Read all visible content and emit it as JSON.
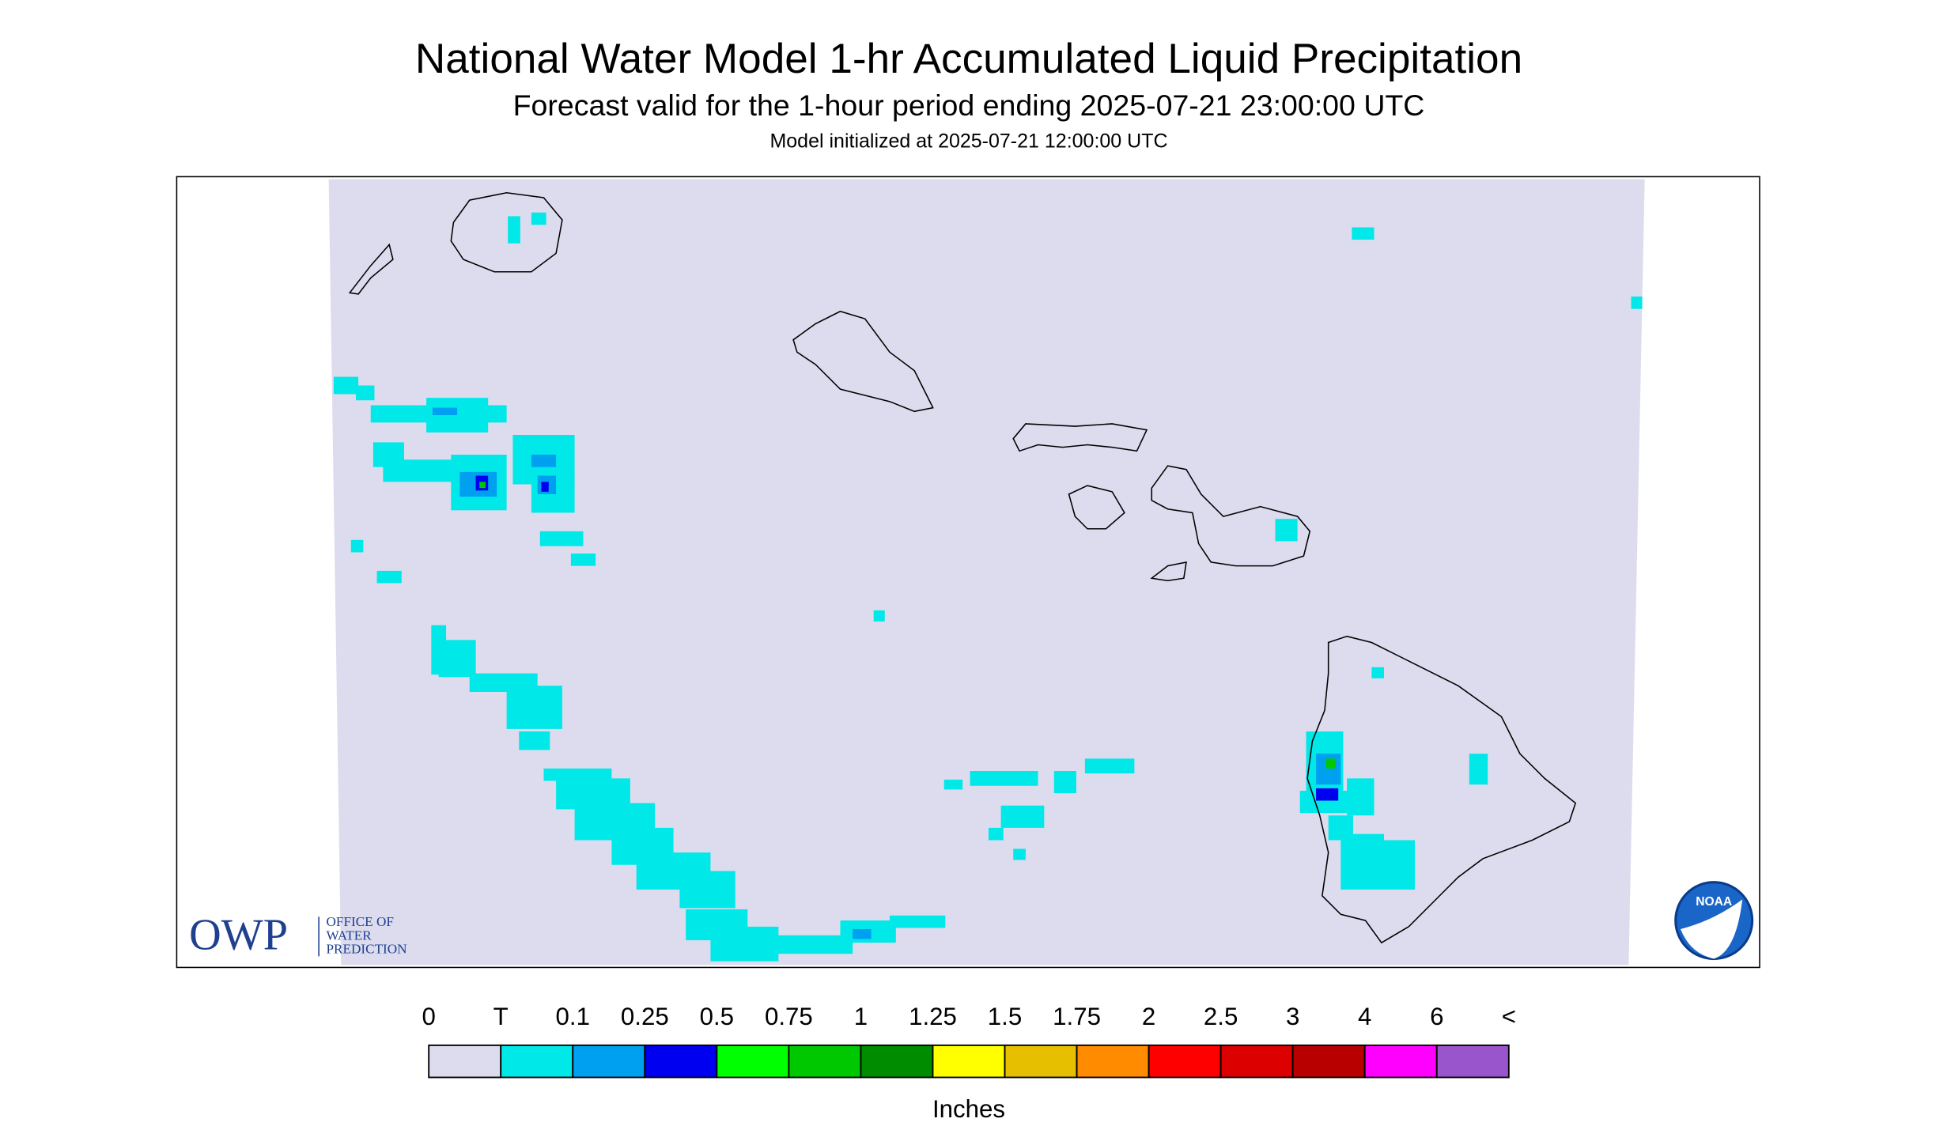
{
  "header": {
    "title": "National Water Model 1-hr Accumulated Liquid Precipitation",
    "subtitle": "Forecast valid for the 1-hour period ending 2025-07-21 23:00:00 UTC",
    "init": "Model initialized at 2025-07-21 12:00:00 UTC"
  },
  "legend": {
    "labels": [
      "0",
      "T",
      "0.1",
      "0.25",
      "0.5",
      "0.75",
      "1",
      "1.25",
      "1.5",
      "1.75",
      "2",
      "2.5",
      "3",
      "4",
      "6",
      "<"
    ],
    "colors": [
      "#dcdcee",
      "#00e8e8",
      "#00a0f0",
      "#0000f0",
      "#00ff00",
      "#00c800",
      "#008c00",
      "#ffff00",
      "#e6c000",
      "#ff8c00",
      "#ff0000",
      "#dc0000",
      "#b80000",
      "#ff00ff",
      "#9955cc"
    ],
    "unit": "Inches"
  },
  "logos": {
    "owp": {
      "name": "OWP",
      "lines": [
        "OFFICE OF",
        "WATER",
        "PREDICTION"
      ]
    },
    "noaa": "NOAA"
  }
}
